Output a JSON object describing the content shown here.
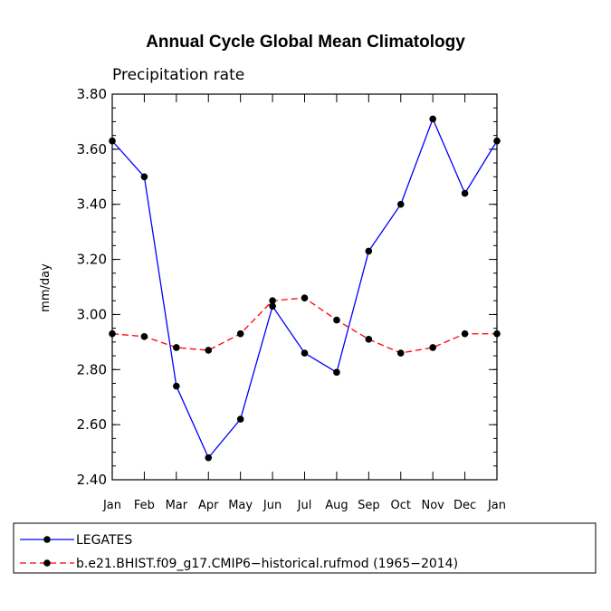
{
  "chart_data": {
    "type": "line",
    "title": "Annual Cycle Global Mean Climatology",
    "subtitle": "Precipitation rate",
    "ylabel": "mm/day",
    "xlabel": "",
    "categories": [
      "Jan",
      "Feb",
      "Mar",
      "Apr",
      "May",
      "Jun",
      "Jul",
      "Aug",
      "Sep",
      "Oct",
      "Nov",
      "Dec",
      "Jan"
    ],
    "ylim": [
      2.4,
      3.8
    ],
    "yticks": [
      "2.40",
      "2.60",
      "2.80",
      "3.00",
      "3.20",
      "3.40",
      "3.60",
      "3.80"
    ],
    "grid": false,
    "legend_position": "bottom",
    "series": [
      {
        "name": "LEGATES",
        "color": "#0000ff",
        "dash": "solid",
        "values": [
          3.63,
          3.5,
          2.74,
          2.48,
          2.62,
          3.03,
          2.86,
          2.79,
          3.23,
          3.4,
          3.71,
          3.44,
          3.63
        ]
      },
      {
        "name": "b.e21.BHIST.f09_g17.CMIP6−historical.rufmod (1965−2014)",
        "color": "#ff0000",
        "dash": "dashed",
        "values": [
          2.93,
          2.92,
          2.88,
          2.87,
          2.93,
          3.05,
          3.06,
          2.98,
          2.91,
          2.86,
          2.88,
          2.93,
          2.93
        ]
      }
    ]
  }
}
